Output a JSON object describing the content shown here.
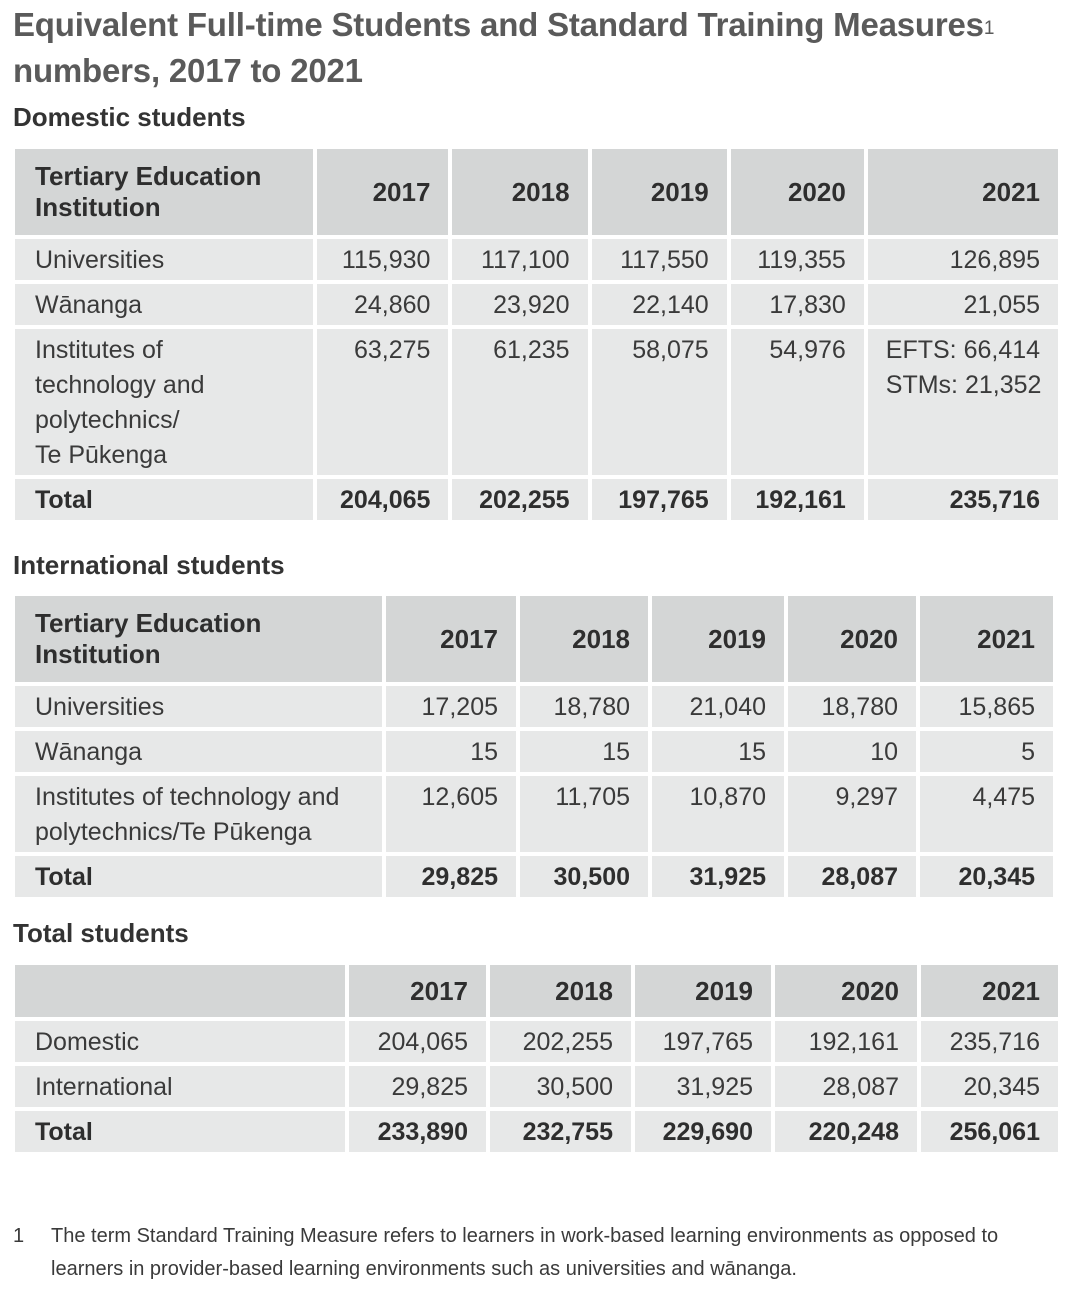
{
  "title": "Equivalent Full-time Students and Standard Training Measures",
  "title_sup": "1",
  "title_line2": "numbers, 2017 to 2021",
  "domestic": {
    "heading": "Domestic students",
    "header_label_1": "Tertiary Education",
    "header_label_2": "Institution",
    "years": [
      "2017",
      "2018",
      "2019",
      "2020",
      "2021"
    ],
    "rows": [
      {
        "label_lines": [
          "Universities"
        ],
        "values": [
          "115,930",
          "117,100",
          "117,550",
          "119,355",
          "126,895"
        ]
      },
      {
        "label_lines": [
          "Wānanga"
        ],
        "values": [
          "24,860",
          "23,920",
          "22,140",
          "17,830",
          "21,055"
        ]
      },
      {
        "label_lines": [
          "Institutes of",
          "technology and",
          "polytechnics/",
          "Te Pūkenga"
        ],
        "values": [
          "63,275",
          "61,235",
          "58,075",
          "54,976",
          "EFTS: 66,414"
        ],
        "extra_2021": "STMs: 21,352"
      }
    ],
    "total": {
      "label": "Total",
      "values": [
        "204,065",
        "202,255",
        "197,765",
        "192,161",
        "235,716"
      ]
    }
  },
  "international": {
    "heading": "International students",
    "header_label_1": "Tertiary Education",
    "header_label_2": "Institution",
    "years": [
      "2017",
      "2018",
      "2019",
      "2020",
      "2021"
    ],
    "rows": [
      {
        "label_lines": [
          "Universities"
        ],
        "values": [
          "17,205",
          "18,780",
          "21,040",
          "18,780",
          "15,865"
        ]
      },
      {
        "label_lines": [
          "Wānanga"
        ],
        "values": [
          "15",
          "15",
          "15",
          "10",
          "5"
        ]
      },
      {
        "label_lines": [
          "Institutes of technology and",
          "polytechnics/Te Pūkenga"
        ],
        "values": [
          "12,605",
          "11,705",
          "10,870",
          "9,297",
          "4,475"
        ]
      }
    ],
    "total": {
      "label": "Total",
      "values": [
        "29,825",
        "30,500",
        "31,925",
        "28,087",
        "20,345"
      ]
    }
  },
  "total_students": {
    "heading": "Total students",
    "years": [
      "2017",
      "2018",
      "2019",
      "2020",
      "2021"
    ],
    "rows": [
      {
        "label_lines": [
          "Domestic"
        ],
        "values": [
          "204,065",
          "202,255",
          "197,765",
          "192,161",
          "235,716"
        ]
      },
      {
        "label_lines": [
          "International"
        ],
        "values": [
          "29,825",
          "30,500",
          "31,925",
          "28,087",
          "20,345"
        ]
      }
    ],
    "total": {
      "label": "Total",
      "values": [
        "233,890",
        "232,755",
        "229,690",
        "220,248",
        "256,061"
      ]
    }
  },
  "footnote": {
    "number": "1",
    "text": "The term Standard Training Measure refers to learners in work-based learning environments as opposed to learners in provider-based learning environments such as universities and wānanga."
  }
}
